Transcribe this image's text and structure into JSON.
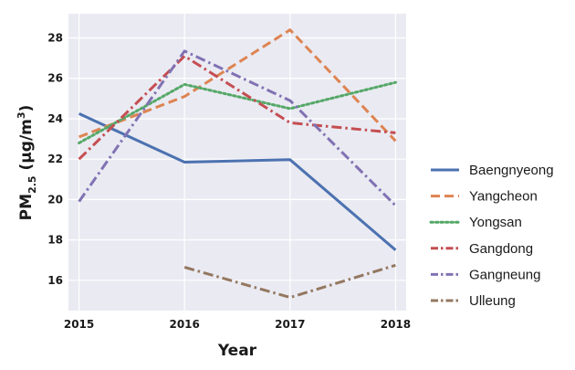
{
  "chart_data": {
    "type": "line",
    "x": [
      2015,
      2016,
      2017,
      2018
    ],
    "xlabel": "Year",
    "ylabel_main": "PM",
    "ylabel_sub": "2.5",
    "ylabel_unit_pre": " (μg/m",
    "ylabel_unit_sup": "3",
    "ylabel_unit_post": ")",
    "xlim": [
      2014.9,
      2018.1
    ],
    "ylim": [
      14.5,
      29.2
    ],
    "yticks": [
      16,
      18,
      20,
      22,
      24,
      26,
      28
    ],
    "xticks": [
      2015,
      2016,
      2017,
      2018
    ],
    "grid": true,
    "legend_position": "right",
    "series": [
      {
        "name": "Baengnyeong",
        "color": "#4C72B0",
        "style": "solid",
        "points": [
          [
            2015,
            24.25
          ],
          [
            2016,
            21.85
          ],
          [
            2017,
            21.97
          ],
          [
            2018,
            17.5
          ]
        ]
      },
      {
        "name": "Yangcheon",
        "color": "#DD8452",
        "style": "dashed",
        "points": [
          [
            2015,
            23.1
          ],
          [
            2016,
            25.1
          ],
          [
            2017,
            28.4
          ],
          [
            2018,
            22.9
          ]
        ]
      },
      {
        "name": "Yongsan",
        "color": "#55A868",
        "style": "dotted",
        "points": [
          [
            2015,
            22.8
          ],
          [
            2016,
            25.7
          ],
          [
            2017,
            24.5
          ],
          [
            2018,
            25.8
          ]
        ]
      },
      {
        "name": "Gangdong",
        "color": "#C44E52",
        "style": "dashdot",
        "points": [
          [
            2015,
            22.0
          ],
          [
            2016,
            27.1
          ],
          [
            2017,
            23.8
          ],
          [
            2018,
            23.3
          ]
        ]
      },
      {
        "name": "Gangneung",
        "color": "#8172B3",
        "style": "dashdot",
        "points": [
          [
            2015,
            19.9
          ],
          [
            2016,
            27.35
          ],
          [
            2017,
            24.9
          ],
          [
            2018,
            19.7
          ]
        ]
      },
      {
        "name": "Ulleung",
        "color": "#937860",
        "style": "dashdot",
        "points": [
          [
            2016,
            16.65
          ],
          [
            2017,
            15.15
          ],
          [
            2018,
            16.75
          ]
        ]
      }
    ]
  }
}
